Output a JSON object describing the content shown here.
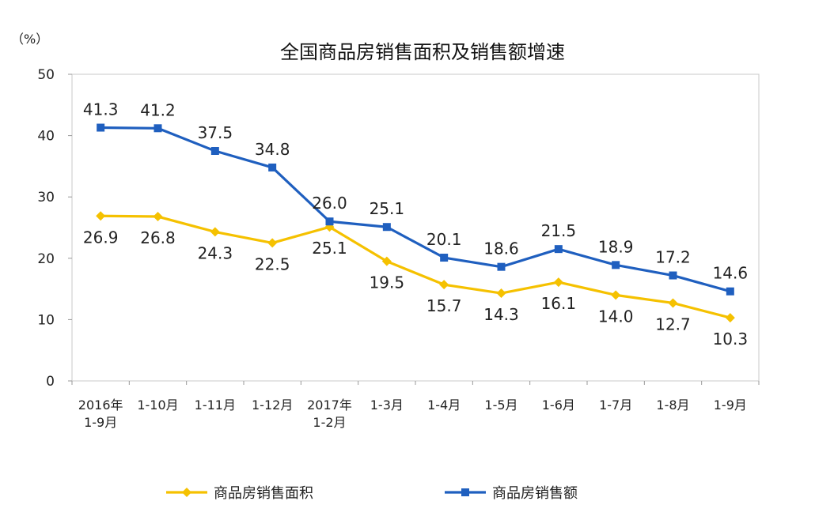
{
  "chart_data": {
    "type": "line",
    "title": "全国商品房销售面积及销售额增速",
    "unit_label": "（%）",
    "categories": [
      [
        "2016年",
        "1-9月"
      ],
      [
        "1-10月"
      ],
      [
        "1-11月"
      ],
      [
        "1-12月"
      ],
      [
        "2017年",
        "1-2月"
      ],
      [
        "1-3月"
      ],
      [
        "1-4月"
      ],
      [
        "1-5月"
      ],
      [
        "1-6月"
      ],
      [
        "1-7月"
      ],
      [
        "1-8月"
      ],
      [
        "1-9月"
      ]
    ],
    "ylim": [
      0,
      50
    ],
    "yticks": [
      0,
      10,
      20,
      30,
      40,
      50
    ],
    "grid": false,
    "legend_position": "bottom",
    "series": [
      {
        "name": "商品房销售面积",
        "color": "#f5c100",
        "marker": "diamond",
        "values": [
          26.9,
          26.8,
          24.3,
          22.5,
          25.1,
          19.5,
          15.7,
          14.3,
          16.1,
          14.0,
          12.7,
          10.3
        ],
        "labels": [
          "26.9",
          "26.8",
          "24.3",
          "22.5",
          "25.1",
          "19.5",
          "15.7",
          "14.3",
          "16.1",
          "14.0",
          "12.7",
          "10.3"
        ]
      },
      {
        "name": "商品房销售额",
        "color": "#1f5fbf",
        "marker": "square",
        "values": [
          41.3,
          41.2,
          37.5,
          34.8,
          26.0,
          25.1,
          20.1,
          18.6,
          21.5,
          18.9,
          17.2,
          14.6
        ],
        "labels": [
          "41.3",
          "41.2",
          "37.5",
          "34.8",
          "26.0",
          "25.1",
          "20.1",
          "18.6",
          "21.5",
          "18.9",
          "17.2",
          "14.6"
        ]
      }
    ]
  }
}
